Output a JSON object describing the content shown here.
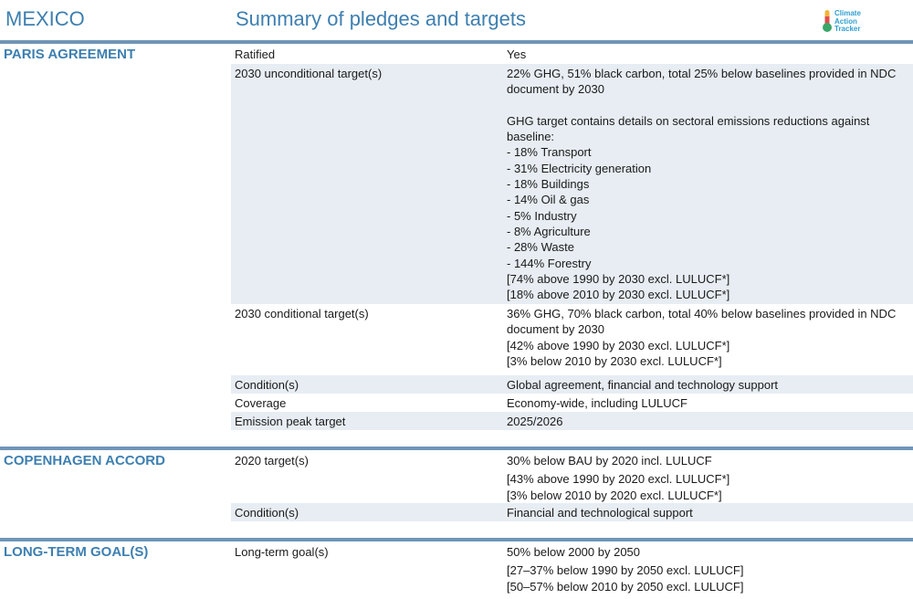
{
  "header": {
    "country": "MEXICO",
    "title": "Summary of pledges and targets",
    "logo_lines": [
      "Climate",
      "Action",
      "Tracker"
    ]
  },
  "colors": {
    "accent": "#3d7fb0",
    "bar": "#6f95b8",
    "shade": "#e7edf3"
  },
  "sections": {
    "paris": {
      "title": "PARIS AGREEMENT",
      "rows": [
        {
          "label": "Ratified",
          "lines": [
            "Yes"
          ]
        },
        {
          "label": "2030 unconditional target(s)",
          "lines": [
            "22% GHG, 51% black carbon, total 25% below baselines provided in NDC",
            "document by 2030",
            "",
            "GHG target contains details on sectoral emissions reductions against",
            "baseline:",
            "- 18% Transport",
            "- 31% Electricity generation",
            "- 18% Buildings",
            "- 14% Oil & gas",
            "- 5% Industry",
            "- 8% Agriculture",
            "- 28% Waste",
            "- 144% Forestry",
            "[74% above 1990 by 2030 excl. LULUCF*]",
            "[18% above 2010 by 2030 excl. LULUCF*]"
          ]
        },
        {
          "label": "2030 conditional target(s)",
          "lines": [
            "36% GHG, 70% black carbon, total 40% below baselines provided in NDC",
            "document by 2030",
            "[42% above 1990 by 2030 excl. LULUCF*]",
            "[3% below 2010 by 2030 excl. LULUCF*]"
          ]
        },
        {
          "label": "Condition(s)",
          "lines": [
            "Global agreement, financial and technology support"
          ]
        },
        {
          "label": "Coverage",
          "lines": [
            "Economy-wide, including LULUCF"
          ]
        },
        {
          "label": "Emission peak target",
          "lines": [
            "2025/2026"
          ]
        }
      ]
    },
    "copenhagen": {
      "title": "COPENHAGEN ACCORD",
      "rows": [
        {
          "label": "2020 target(s)",
          "lines": [
            "30% below BAU by 2020 incl. LULUCF",
            "[43% above 1990 by 2020 excl. LULUCF*]",
            "[3% below 2010 by 2020 excl. LULUCF*]"
          ]
        },
        {
          "label": "Condition(s)",
          "lines": [
            "Financial and technological support"
          ]
        }
      ]
    },
    "longterm": {
      "title": "LONG-TERM GOAL(S)",
      "rows": [
        {
          "label": "Long-term goal(s)",
          "lines": [
            "50% below 2000 by 2050",
            "[27–37% below 1990 by 2050 excl. LULUCF]",
            "[50–57% below 2010 by 2050 excl. LULUCF]"
          ]
        }
      ]
    }
  }
}
